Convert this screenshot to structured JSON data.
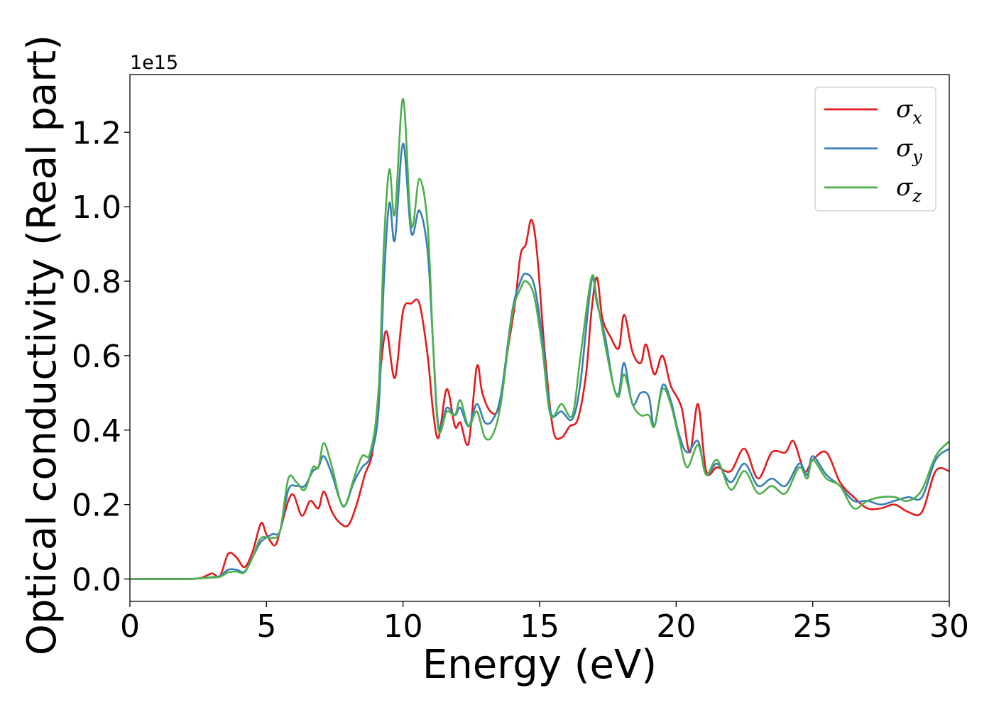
{
  "chart_data": {
    "type": "line",
    "xlabel": "Energy (eV)",
    "ylabel": "Optical conductivity (Real part)",
    "y_offset_label": "1e15",
    "xlim": [
      0,
      30
    ],
    "ylim": [
      -0.06,
      1.355
    ],
    "x_ticks": [
      0,
      5,
      10,
      15,
      20,
      25,
      30
    ],
    "x_tick_labels": [
      "0",
      "5",
      "10",
      "15",
      "20",
      "25",
      "30"
    ],
    "y_ticks": [
      0.0,
      0.2,
      0.4,
      0.6,
      0.8,
      1.0,
      1.2
    ],
    "y_tick_labels": [
      "0.0",
      "0.2",
      "0.4",
      "0.6",
      "0.8",
      "1.0",
      "1.2"
    ],
    "grid": false,
    "legend_position": "top-right",
    "series": [
      {
        "name": "σx",
        "base": "σ",
        "sub": "x",
        "color": "#e41a1c",
        "points": [
          [
            0,
            0
          ],
          [
            2.0,
            0.0
          ],
          [
            2.6,
            0.003
          ],
          [
            3.0,
            0.015
          ],
          [
            3.3,
            0.008
          ],
          [
            3.6,
            0.068
          ],
          [
            3.9,
            0.058
          ],
          [
            4.2,
            0.032
          ],
          [
            4.5,
            0.075
          ],
          [
            4.8,
            0.15
          ],
          [
            5.0,
            0.12
          ],
          [
            5.3,
            0.09
          ],
          [
            5.5,
            0.13
          ],
          [
            5.8,
            0.21
          ],
          [
            6.0,
            0.225
          ],
          [
            6.3,
            0.17
          ],
          [
            6.6,
            0.21
          ],
          [
            6.9,
            0.19
          ],
          [
            7.1,
            0.235
          ],
          [
            7.4,
            0.18
          ],
          [
            7.7,
            0.15
          ],
          [
            8.0,
            0.145
          ],
          [
            8.3,
            0.2
          ],
          [
            8.6,
            0.28
          ],
          [
            8.9,
            0.35
          ],
          [
            9.2,
            0.58
          ],
          [
            9.4,
            0.665
          ],
          [
            9.7,
            0.54
          ],
          [
            10.0,
            0.72
          ],
          [
            10.3,
            0.74
          ],
          [
            10.6,
            0.74
          ],
          [
            10.9,
            0.6
          ],
          [
            11.1,
            0.45
          ],
          [
            11.3,
            0.38
          ],
          [
            11.6,
            0.51
          ],
          [
            11.9,
            0.41
          ],
          [
            12.1,
            0.42
          ],
          [
            12.4,
            0.365
          ],
          [
            12.7,
            0.57
          ],
          [
            12.9,
            0.5
          ],
          [
            13.2,
            0.45
          ],
          [
            13.5,
            0.46
          ],
          [
            13.8,
            0.6
          ],
          [
            14.1,
            0.74
          ],
          [
            14.3,
            0.87
          ],
          [
            14.5,
            0.9
          ],
          [
            14.7,
            0.965
          ],
          [
            14.9,
            0.88
          ],
          [
            15.2,
            0.6
          ],
          [
            15.5,
            0.4
          ],
          [
            15.8,
            0.38
          ],
          [
            16.1,
            0.41
          ],
          [
            16.4,
            0.43
          ],
          [
            16.7,
            0.55
          ],
          [
            16.9,
            0.72
          ],
          [
            17.1,
            0.81
          ],
          [
            17.3,
            0.7
          ],
          [
            17.6,
            0.65
          ],
          [
            17.9,
            0.62
          ],
          [
            18.1,
            0.71
          ],
          [
            18.4,
            0.61
          ],
          [
            18.7,
            0.58
          ],
          [
            18.9,
            0.63
          ],
          [
            19.2,
            0.55
          ],
          [
            19.5,
            0.6
          ],
          [
            19.8,
            0.52
          ],
          [
            20.2,
            0.46
          ],
          [
            20.5,
            0.34
          ],
          [
            20.8,
            0.47
          ],
          [
            21.1,
            0.29
          ],
          [
            21.5,
            0.3
          ],
          [
            22.0,
            0.29
          ],
          [
            22.5,
            0.35
          ],
          [
            23.0,
            0.27
          ],
          [
            23.5,
            0.34
          ],
          [
            24.0,
            0.34
          ],
          [
            24.3,
            0.37
          ],
          [
            24.7,
            0.29
          ],
          [
            25.0,
            0.32
          ],
          [
            25.5,
            0.34
          ],
          [
            26.0,
            0.26
          ],
          [
            26.5,
            0.22
          ],
          [
            27.0,
            0.19
          ],
          [
            27.5,
            0.19
          ],
          [
            28.0,
            0.2
          ],
          [
            28.5,
            0.18
          ],
          [
            29.0,
            0.18
          ],
          [
            29.5,
            0.29
          ],
          [
            30.0,
            0.29
          ]
        ]
      },
      {
        "name": "σy",
        "base": "σ",
        "sub": "y",
        "color": "#377eb8",
        "points": [
          [
            0,
            0
          ],
          [
            2.0,
            0.0
          ],
          [
            2.6,
            0.002
          ],
          [
            3.0,
            0.005
          ],
          [
            3.3,
            0.008
          ],
          [
            3.6,
            0.025
          ],
          [
            3.9,
            0.025
          ],
          [
            4.2,
            0.02
          ],
          [
            4.5,
            0.06
          ],
          [
            4.8,
            0.1
          ],
          [
            5.2,
            0.12
          ],
          [
            5.5,
            0.13
          ],
          [
            5.8,
            0.24
          ],
          [
            6.1,
            0.25
          ],
          [
            6.4,
            0.25
          ],
          [
            6.7,
            0.29
          ],
          [
            6.9,
            0.3
          ],
          [
            7.1,
            0.33
          ],
          [
            7.4,
            0.28
          ],
          [
            7.7,
            0.21
          ],
          [
            7.9,
            0.2
          ],
          [
            8.2,
            0.26
          ],
          [
            8.5,
            0.3
          ],
          [
            8.8,
            0.33
          ],
          [
            9.1,
            0.45
          ],
          [
            9.3,
            0.8
          ],
          [
            9.5,
            1.01
          ],
          [
            9.7,
            0.91
          ],
          [
            10.0,
            1.17
          ],
          [
            10.3,
            0.93
          ],
          [
            10.6,
            0.99
          ],
          [
            10.9,
            0.88
          ],
          [
            11.1,
            0.63
          ],
          [
            11.3,
            0.41
          ],
          [
            11.6,
            0.46
          ],
          [
            11.9,
            0.44
          ],
          [
            12.1,
            0.46
          ],
          [
            12.4,
            0.41
          ],
          [
            12.7,
            0.47
          ],
          [
            13.0,
            0.42
          ],
          [
            13.3,
            0.43
          ],
          [
            13.6,
            0.5
          ],
          [
            14.0,
            0.72
          ],
          [
            14.3,
            0.8
          ],
          [
            14.5,
            0.82
          ],
          [
            14.8,
            0.79
          ],
          [
            15.1,
            0.65
          ],
          [
            15.4,
            0.45
          ],
          [
            15.8,
            0.45
          ],
          [
            16.2,
            0.43
          ],
          [
            16.5,
            0.53
          ],
          [
            16.9,
            0.8
          ],
          [
            17.1,
            0.74
          ],
          [
            17.4,
            0.65
          ],
          [
            17.7,
            0.52
          ],
          [
            17.9,
            0.5
          ],
          [
            18.1,
            0.58
          ],
          [
            18.4,
            0.47
          ],
          [
            18.7,
            0.5
          ],
          [
            19.0,
            0.49
          ],
          [
            19.2,
            0.41
          ],
          [
            19.5,
            0.52
          ],
          [
            19.8,
            0.48
          ],
          [
            20.1,
            0.39
          ],
          [
            20.4,
            0.34
          ],
          [
            20.8,
            0.37
          ],
          [
            21.1,
            0.28
          ],
          [
            21.5,
            0.31
          ],
          [
            22.0,
            0.26
          ],
          [
            22.5,
            0.31
          ],
          [
            23.0,
            0.25
          ],
          [
            23.5,
            0.27
          ],
          [
            24.0,
            0.25
          ],
          [
            24.5,
            0.31
          ],
          [
            24.8,
            0.28
          ],
          [
            25.0,
            0.33
          ],
          [
            25.5,
            0.28
          ],
          [
            26.0,
            0.25
          ],
          [
            26.5,
            0.21
          ],
          [
            27.0,
            0.21
          ],
          [
            27.5,
            0.2
          ],
          [
            28.0,
            0.21
          ],
          [
            28.5,
            0.22
          ],
          [
            29.0,
            0.22
          ],
          [
            29.5,
            0.32
          ],
          [
            30.0,
            0.35
          ]
        ]
      },
      {
        "name": "σz",
        "base": "σ",
        "sub": "z",
        "color": "#4daf4a",
        "points": [
          [
            0,
            0
          ],
          [
            2.0,
            0.0
          ],
          [
            2.6,
            0.002
          ],
          [
            3.0,
            0.004
          ],
          [
            3.3,
            0.006
          ],
          [
            3.6,
            0.018
          ],
          [
            3.9,
            0.02
          ],
          [
            4.2,
            0.018
          ],
          [
            4.5,
            0.06
          ],
          [
            4.8,
            0.11
          ],
          [
            5.2,
            0.11
          ],
          [
            5.5,
            0.13
          ],
          [
            5.8,
            0.27
          ],
          [
            6.1,
            0.26
          ],
          [
            6.4,
            0.24
          ],
          [
            6.7,
            0.3
          ],
          [
            6.9,
            0.3
          ],
          [
            7.1,
            0.365
          ],
          [
            7.4,
            0.3
          ],
          [
            7.7,
            0.21
          ],
          [
            7.9,
            0.2
          ],
          [
            8.2,
            0.27
          ],
          [
            8.5,
            0.33
          ],
          [
            8.8,
            0.34
          ],
          [
            9.1,
            0.5
          ],
          [
            9.3,
            0.9
          ],
          [
            9.5,
            1.1
          ],
          [
            9.7,
            0.98
          ],
          [
            10.0,
            1.29
          ],
          [
            10.3,
            0.95
          ],
          [
            10.6,
            1.075
          ],
          [
            10.9,
            0.95
          ],
          [
            11.1,
            0.63
          ],
          [
            11.3,
            0.4
          ],
          [
            11.6,
            0.45
          ],
          [
            11.9,
            0.44
          ],
          [
            12.1,
            0.48
          ],
          [
            12.4,
            0.41
          ],
          [
            12.7,
            0.45
          ],
          [
            13.0,
            0.38
          ],
          [
            13.3,
            0.39
          ],
          [
            13.6,
            0.48
          ],
          [
            14.0,
            0.71
          ],
          [
            14.3,
            0.78
          ],
          [
            14.5,
            0.8
          ],
          [
            14.8,
            0.76
          ],
          [
            15.1,
            0.62
          ],
          [
            15.4,
            0.44
          ],
          [
            15.8,
            0.47
          ],
          [
            16.2,
            0.44
          ],
          [
            16.5,
            0.6
          ],
          [
            16.9,
            0.81
          ],
          [
            17.1,
            0.75
          ],
          [
            17.4,
            0.63
          ],
          [
            17.7,
            0.52
          ],
          [
            17.9,
            0.49
          ],
          [
            18.1,
            0.55
          ],
          [
            18.4,
            0.47
          ],
          [
            18.7,
            0.44
          ],
          [
            19.0,
            0.44
          ],
          [
            19.2,
            0.41
          ],
          [
            19.5,
            0.51
          ],
          [
            19.8,
            0.47
          ],
          [
            20.1,
            0.38
          ],
          [
            20.4,
            0.3
          ],
          [
            20.8,
            0.36
          ],
          [
            21.1,
            0.28
          ],
          [
            21.5,
            0.32
          ],
          [
            22.0,
            0.24
          ],
          [
            22.5,
            0.29
          ],
          [
            23.0,
            0.23
          ],
          [
            23.5,
            0.25
          ],
          [
            24.0,
            0.23
          ],
          [
            24.5,
            0.3
          ],
          [
            24.8,
            0.27
          ],
          [
            25.0,
            0.32
          ],
          [
            25.5,
            0.27
          ],
          [
            26.0,
            0.25
          ],
          [
            26.5,
            0.19
          ],
          [
            27.0,
            0.21
          ],
          [
            27.5,
            0.22
          ],
          [
            28.0,
            0.22
          ],
          [
            28.5,
            0.21
          ],
          [
            29.0,
            0.24
          ],
          [
            29.5,
            0.33
          ],
          [
            30.0,
            0.37
          ]
        ]
      }
    ]
  }
}
